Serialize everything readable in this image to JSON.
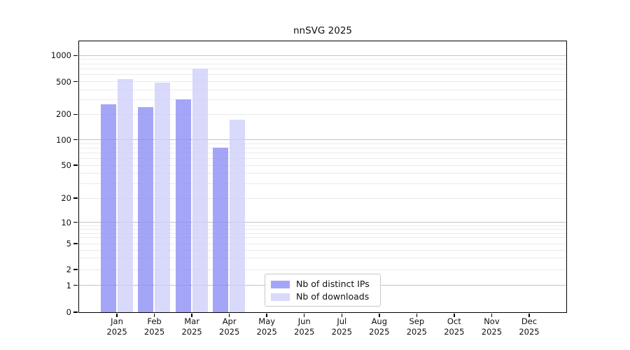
{
  "title": "nnSVG 2025",
  "year_label": "2025",
  "legend": {
    "items": [
      {
        "label": "Nb of distinct IPs",
        "color": "rgba(140,140,246,0.78)"
      },
      {
        "label": "Nb of downloads",
        "color": "rgba(206,206,250,0.78)"
      }
    ]
  },
  "axes": {
    "y_tick_labels": [
      "0",
      "1",
      "2",
      "5",
      "10",
      "20",
      "50",
      "100",
      "200",
      "500",
      "1000"
    ],
    "x_tick_labels": [
      "Jan",
      "Feb",
      "Mar",
      "Apr",
      "May",
      "Jun",
      "Jul",
      "Aug",
      "Sep",
      "Oct",
      "Nov",
      "Dec"
    ]
  },
  "chart_data": {
    "type": "bar",
    "title": "nnSVG 2025",
    "categories": [
      "Jan 2025",
      "Feb 2025",
      "Mar 2025",
      "Apr 2025",
      "May 2025",
      "Jun 2025",
      "Jul 2025",
      "Aug 2025",
      "Sep 2025",
      "Oct 2025",
      "Nov 2025",
      "Dec 2025"
    ],
    "series": [
      {
        "name": "Nb of distinct IPs",
        "color": "rgba(140,140,246,0.78)",
        "values": [
          265,
          242,
          303,
          79,
          null,
          null,
          null,
          null,
          null,
          null,
          null,
          null
        ]
      },
      {
        "name": "Nb of downloads",
        "color": "rgba(206,206,250,0.78)",
        "values": [
          530,
          483,
          701,
          170,
          null,
          null,
          null,
          null,
          null,
          null,
          null,
          null
        ]
      }
    ],
    "xlabel": "",
    "ylabel": "",
    "yscale": "log above 1, linear between 0 and 1 (symlog-like)",
    "yticks": [
      0,
      1,
      2,
      5,
      10,
      20,
      50,
      100,
      200,
      500,
      1000
    ],
    "ylim": [
      0,
      1400
    ],
    "grid": "horizontal gridlines: major at 1,10,100,1000; minor at 2-9 per decade",
    "legend_position": "lower center"
  },
  "colors": {
    "distinct_ips_bar": "rgba(140,140,246,0.78)",
    "downloads_bar": "rgba(206,206,250,0.78)",
    "grid_major": "#c3c3c3",
    "grid_minor": "#eaeaea",
    "axis_spine": "#000000",
    "text": "#1a1a1a",
    "background": "#ffffff"
  }
}
